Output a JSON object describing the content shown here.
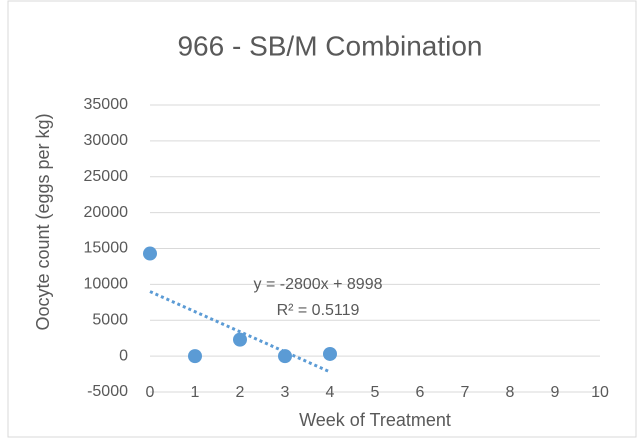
{
  "chart_data": {
    "type": "scatter",
    "title": "966 - SB/M Combination",
    "xlabel": "Week of Treatment",
    "ylabel": "Oocyte count (eggs per kg)",
    "series": [
      {
        "name": "Oocyte count",
        "color": "#5b9bd5",
        "x": [
          0,
          1,
          2,
          3,
          4
        ],
        "values": [
          14300,
          0,
          2300,
          0,
          300
        ]
      }
    ],
    "trendline": {
      "slope": -2800,
      "intercept": 8998,
      "xlim": [
        0,
        4
      ],
      "color": "#5b9bd5",
      "equation": "y = -2800x + 8998",
      "r_squared": "R² = 0.5119"
    },
    "xlim": [
      0,
      10
    ],
    "xticks": [
      0,
      1,
      2,
      3,
      4,
      5,
      6,
      7,
      8,
      9,
      10
    ],
    "ylim": [
      -5000,
      35000
    ],
    "yticks": [
      -5000,
      0,
      5000,
      10000,
      15000,
      20000,
      25000,
      30000,
      35000
    ],
    "grid": true
  }
}
